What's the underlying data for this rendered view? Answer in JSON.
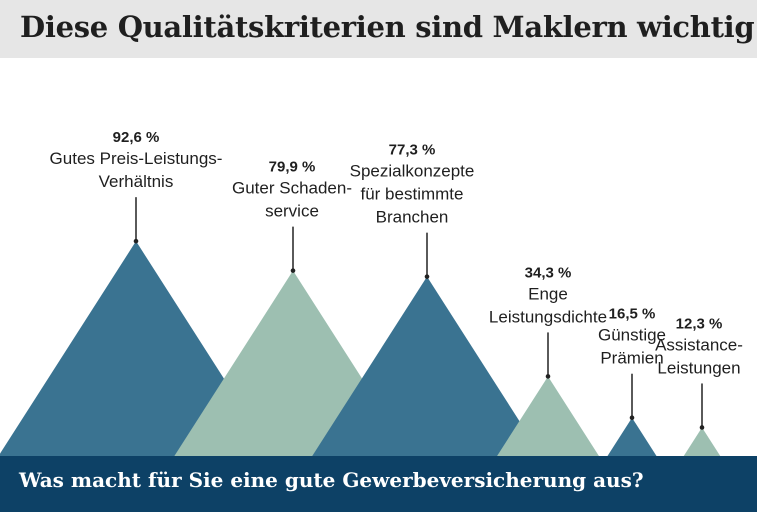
{
  "colors": {
    "dark": "#3a7391",
    "light": "#9dbfb1",
    "footer": "#0d4166",
    "title_bg": "#e6e6e6"
  },
  "header": {
    "title": "Diese Qualitätskriterien sind Maklern wichtig"
  },
  "footer": {
    "question": "Was macht für Sie eine gute Gewerbeversicherung aus?"
  },
  "chart_data": {
    "type": "bar",
    "style": "triangles",
    "title": "Diese Qualitätskriterien sind Maklern wichtig",
    "subtitle": "Was macht für Sie eine gute Gewerbeversicherung aus?",
    "unit": "%",
    "ylim": [
      0,
      100
    ],
    "categories": [
      "Gutes Preis-Leistungs-Verhältnis",
      "Guter Schadenservice",
      "Spezialkonzepte für bestimmte Branchen",
      "Enge Leistungsdichte",
      "Günstige Prämien",
      "Assistance-Leistungen"
    ],
    "values": [
      92.6,
      79.9,
      77.3,
      34.3,
      16.5,
      12.3
    ],
    "value_labels": [
      "92,6 %",
      "79,9 %",
      "77,3 %",
      "34,3 %",
      "16,5 %",
      "12,3 %"
    ],
    "label_lines": [
      [
        "Gutes Preis-Leistungs-",
        "Verhältnis"
      ],
      [
        "Guter Schaden-",
        "service"
      ],
      [
        "Spezialkonzepte",
        "für bestimmte",
        "Branchen"
      ],
      [
        "Enge",
        "Leistungsdichte"
      ],
      [
        "Günstige",
        "Prämien"
      ],
      [
        "Assistance-",
        "Leistungen"
      ]
    ],
    "bar_colors": [
      "dark",
      "light",
      "dark",
      "light",
      "dark",
      "light"
    ]
  }
}
